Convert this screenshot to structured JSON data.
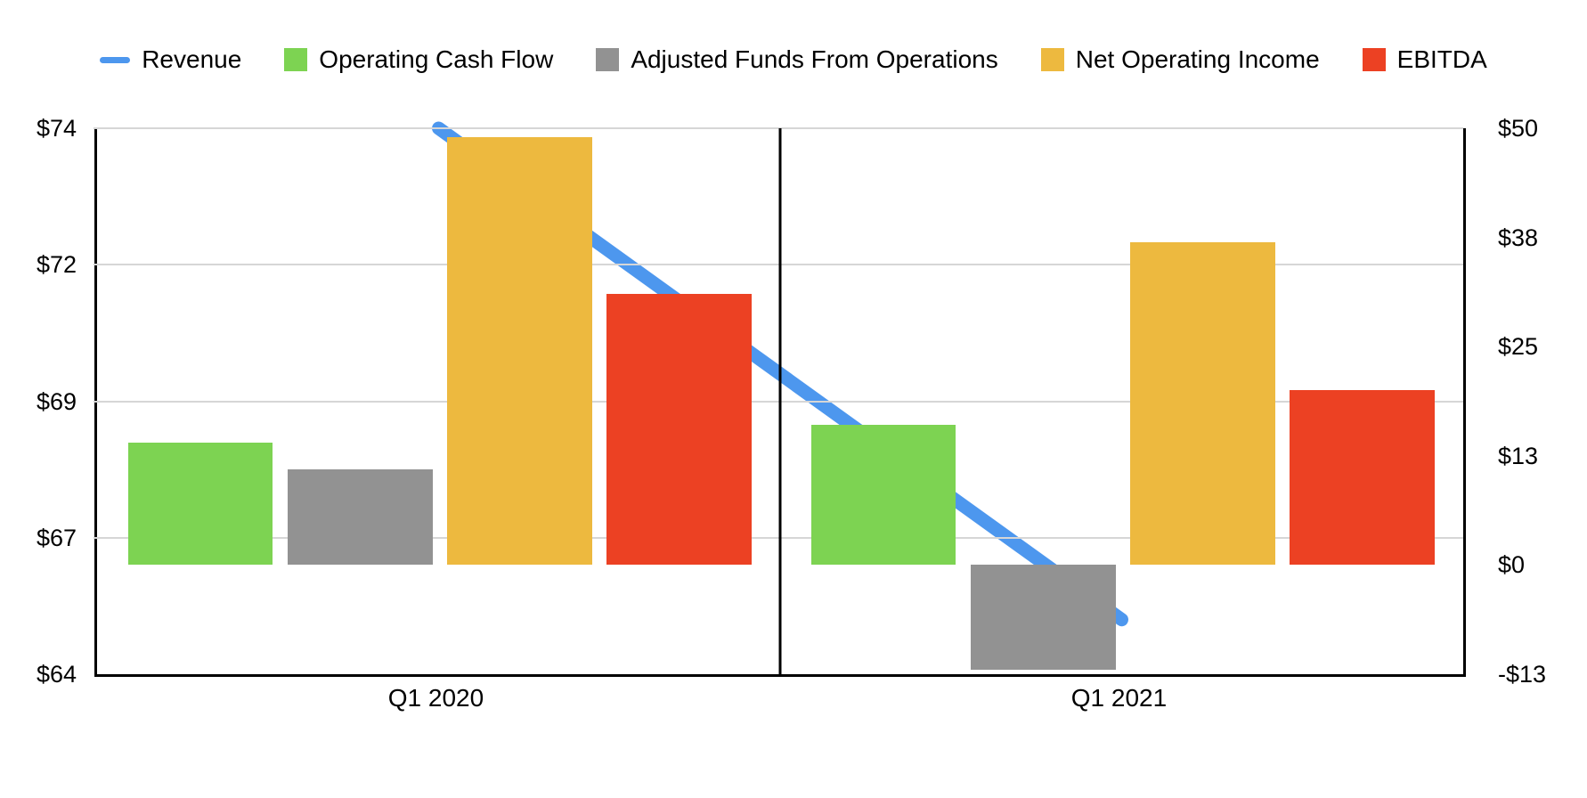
{
  "chart_data": {
    "type": "combo-bar-line",
    "categories": [
      "Q1 2020",
      "Q1 2021"
    ],
    "line_series": {
      "name": "Revenue",
      "axis": "left",
      "color": "#4D97EE",
      "values": [
        74,
        65
      ]
    },
    "bar_series": [
      {
        "name": "Operating Cash Flow",
        "axis": "right",
        "color": "#7DD352",
        "values": [
          14,
          16
        ]
      },
      {
        "name": "Adjusted Funds From Operations",
        "axis": "right",
        "color": "#929292",
        "values": [
          11,
          -12
        ]
      },
      {
        "name": "Net Operating Income",
        "axis": "right",
        "color": "#EDB93F",
        "values": [
          49,
          37
        ]
      },
      {
        "name": "EBITDA",
        "axis": "right",
        "color": "#EC4123",
        "values": [
          31,
          20
        ]
      }
    ],
    "left_axis": {
      "min": 64,
      "max": 74,
      "tick_labels": [
        "$74",
        "$72",
        "$69",
        "$67",
        "$64"
      ]
    },
    "right_axis": {
      "min": -12.5,
      "max": 50,
      "tick_labels": [
        "$50",
        "$38",
        "$25",
        "$13",
        "$0",
        "-$13"
      ]
    },
    "grid": true,
    "legend_position": "top",
    "legend": [
      {
        "label": "Revenue",
        "color": "#4D97EE",
        "swatch": "line"
      },
      {
        "label": "Operating Cash Flow",
        "color": "#7DD352",
        "swatch": "square"
      },
      {
        "label": "Adjusted Funds From Operations",
        "color": "#929292",
        "swatch": "square"
      },
      {
        "label": "Net Operating Income",
        "color": "#EDB93F",
        "swatch": "square"
      },
      {
        "label": "EBITDA",
        "color": "#EC4123",
        "swatch": "square"
      }
    ]
  }
}
